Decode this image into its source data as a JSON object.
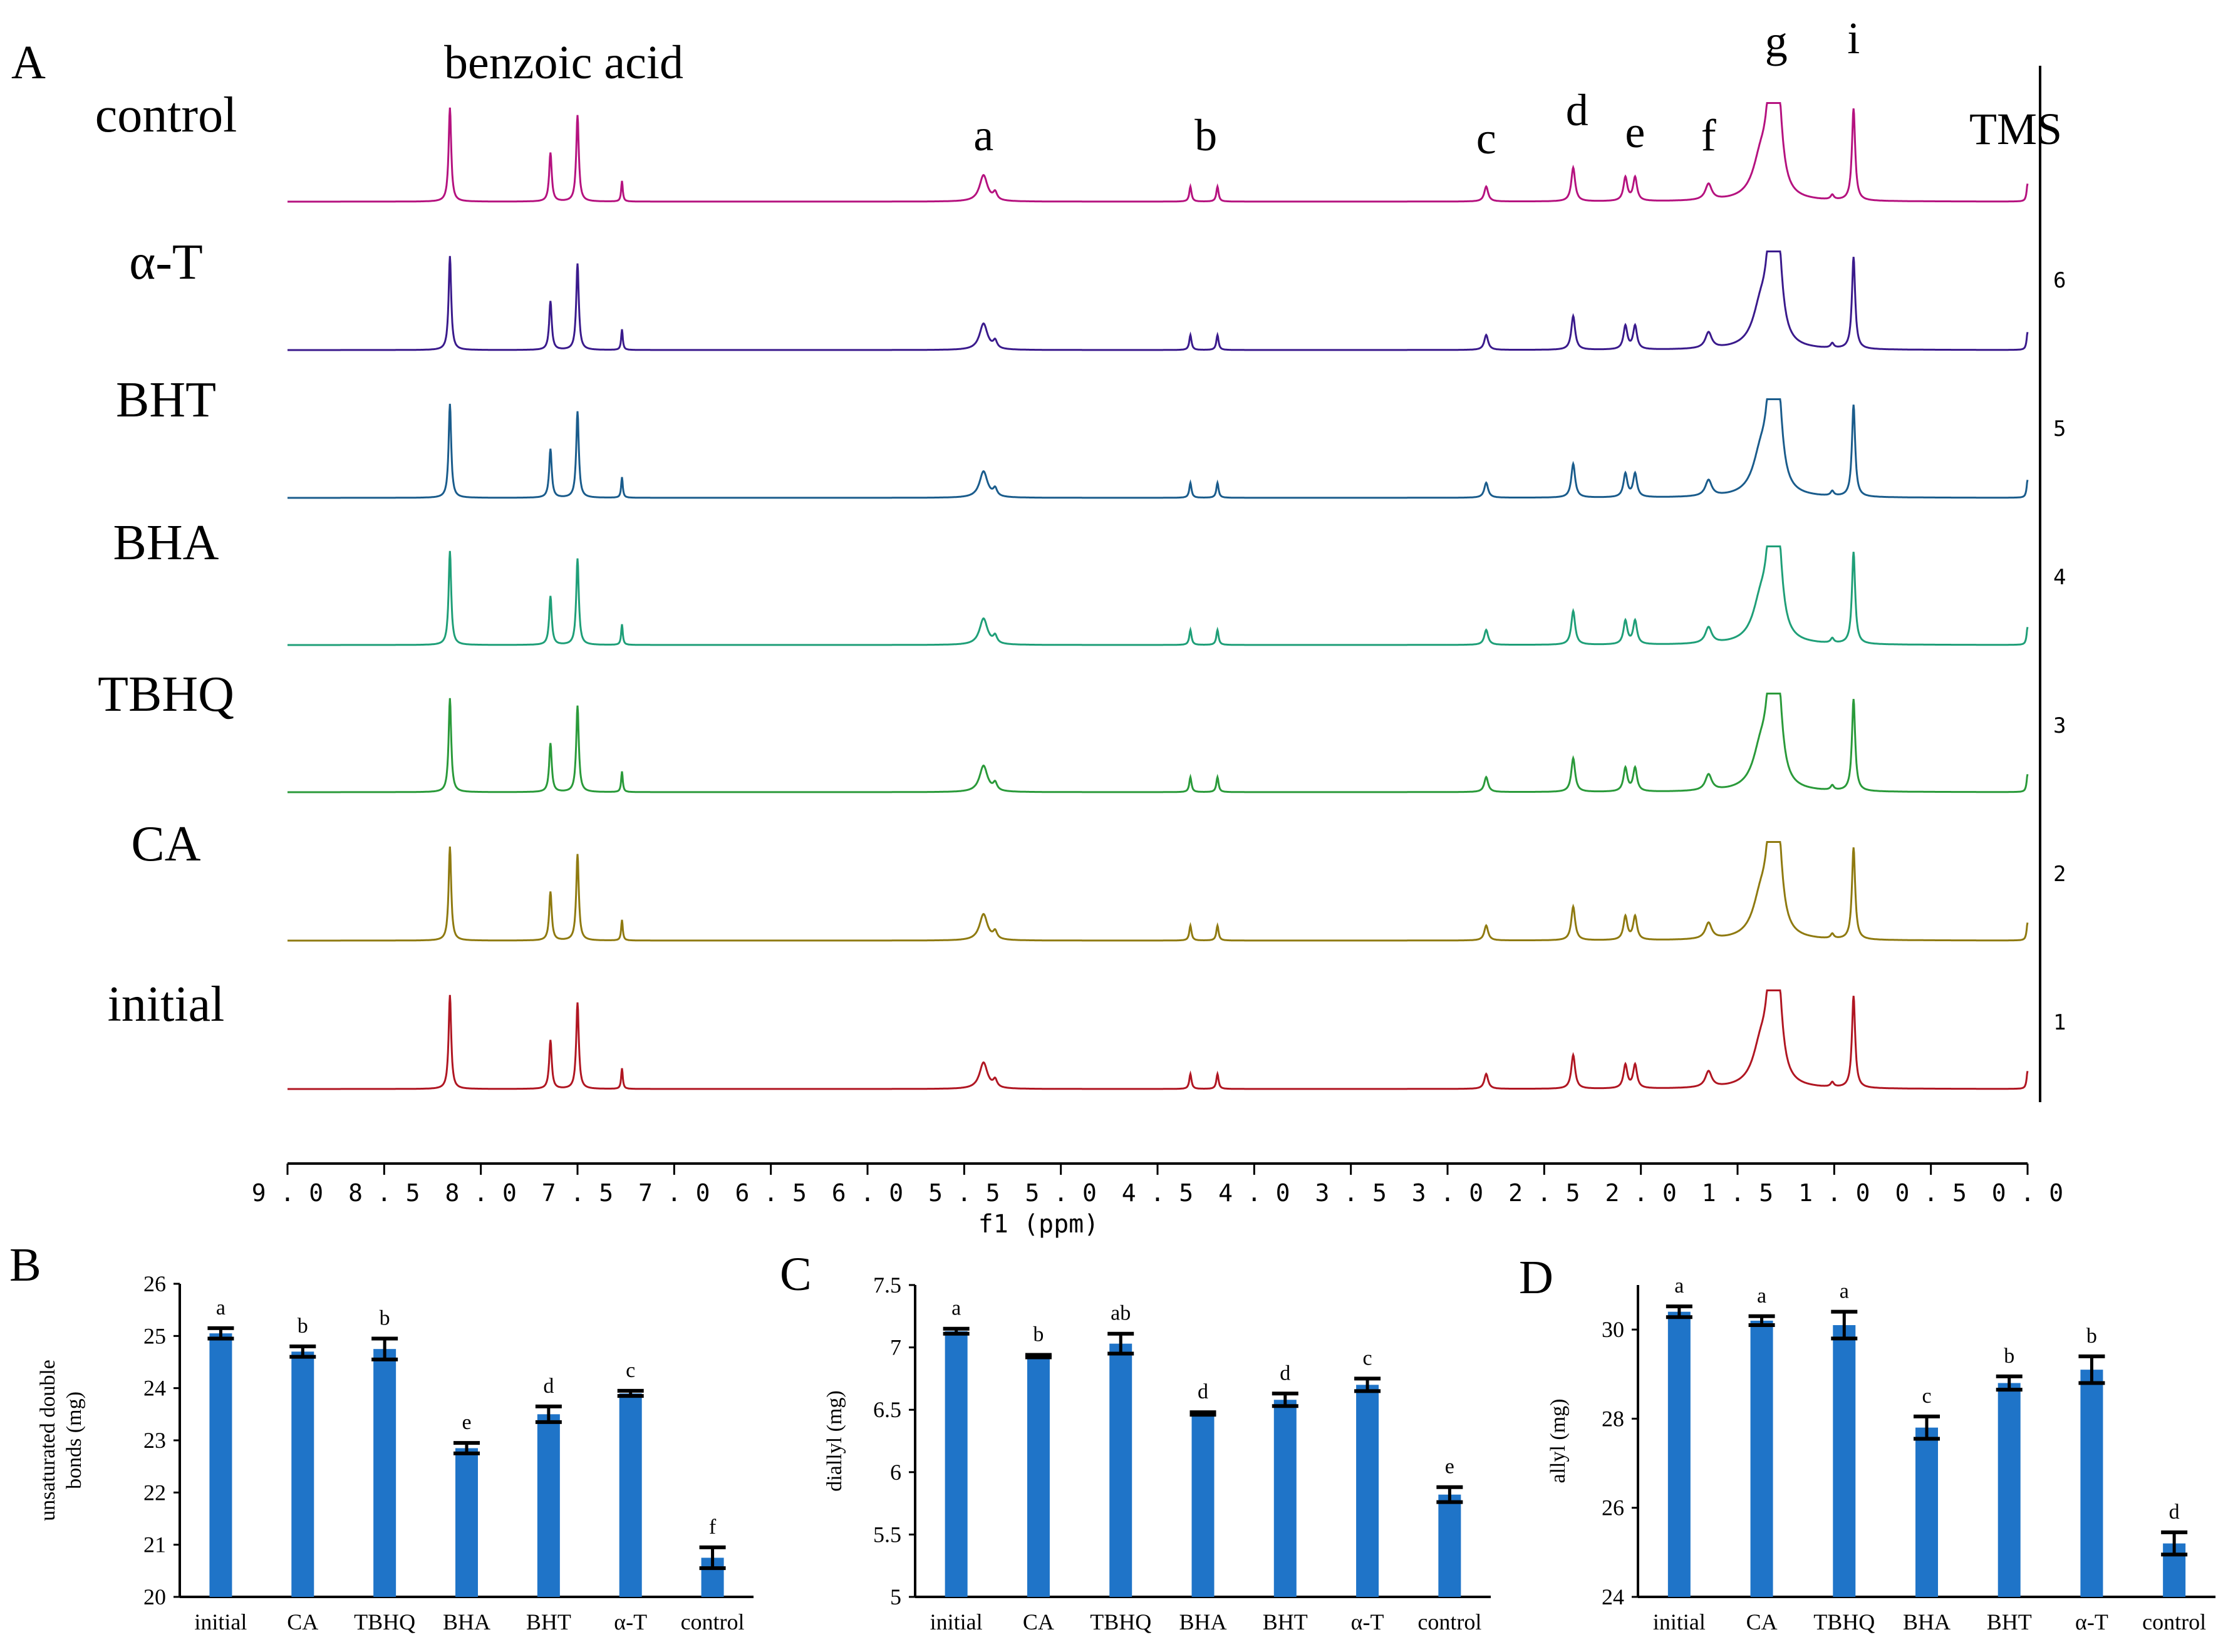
{
  "chart_data": [
    {
      "panel": "A",
      "type": "line",
      "title": "benzoic acid",
      "xlabel": "f1  (ppm)",
      "xlim": [
        9.0,
        0.0
      ],
      "xticks": [
        "9.0",
        "8.5",
        "8.0",
        "7.5",
        "7.0",
        "6.5",
        "6.0",
        "5.5",
        "5.0",
        "4.5",
        "4.0",
        "3.5",
        "3.0",
        "2.5",
        "2.0",
        "1.5",
        "1.0",
        "0.5",
        "0.0"
      ],
      "right_axis_ticks": [
        "6",
        "5",
        "4",
        "3",
        "2",
        "1"
      ],
      "peak_labels": [
        {
          "text": "a",
          "ppm": 5.4
        },
        {
          "text": "b",
          "ppm": 4.25
        },
        {
          "text": "c",
          "ppm": 2.8
        },
        {
          "text": "d",
          "ppm": 2.33
        },
        {
          "text": "e",
          "ppm": 2.03
        },
        {
          "text": "f",
          "ppm": 1.65
        },
        {
          "text": "g",
          "ppm": 1.3
        },
        {
          "text": "i",
          "ppm": 0.9
        },
        {
          "text": "TMS",
          "ppm": 0.0
        }
      ],
      "peaks": [
        {
          "ppm": 8.16,
          "h": 1.0,
          "w": 0.008
        },
        {
          "ppm": 7.64,
          "h": 0.52,
          "w": 0.008
        },
        {
          "ppm": 7.5,
          "h": 0.92,
          "w": 0.008
        },
        {
          "ppm": 7.27,
          "h": 0.22,
          "w": 0.005
        },
        {
          "ppm": 5.4,
          "h": 0.28,
          "w": 0.025
        },
        {
          "ppm": 5.34,
          "h": 0.08,
          "w": 0.012
        },
        {
          "ppm": 4.33,
          "h": 0.16,
          "w": 0.007
        },
        {
          "ppm": 4.19,
          "h": 0.16,
          "w": 0.007
        },
        {
          "ppm": 2.8,
          "h": 0.16,
          "w": 0.012
        },
        {
          "ppm": 2.35,
          "h": 0.36,
          "w": 0.012
        },
        {
          "ppm": 2.08,
          "h": 0.25,
          "w": 0.012
        },
        {
          "ppm": 2.03,
          "h": 0.25,
          "w": 0.012
        },
        {
          "ppm": 1.65,
          "h": 0.17,
          "w": 0.02
        },
        {
          "ppm": 1.33,
          "h": 0.95,
          "w": 0.025
        },
        {
          "ppm": 1.29,
          "h": 0.95,
          "w": 0.025
        },
        {
          "ppm": 1.38,
          "h": 0.4,
          "w": 0.05
        },
        {
          "ppm": 1.01,
          "h": 0.05,
          "w": 0.01
        },
        {
          "ppm": 0.9,
          "h": 0.98,
          "w": 0.01
        },
        {
          "ppm": 0.0,
          "h": 0.19,
          "w": 0.006
        }
      ],
      "series": [
        {
          "name": "control",
          "color": "#b5127f"
        },
        {
          "name": "α-T",
          "color": "#3a1a8c"
        },
        {
          "name": "BHT",
          "color": "#1a5c8c"
        },
        {
          "name": "BHA",
          "color": "#1f9f78"
        },
        {
          "name": "TBHQ",
          "color": "#2a9a3a"
        },
        {
          "name": "CA",
          "color": "#8f7a10"
        },
        {
          "name": "initial",
          "color": "#b01622"
        }
      ]
    },
    {
      "panel": "B",
      "type": "bar",
      "categories": [
        "initial",
        "CA",
        "TBHQ",
        "BHA",
        "BHT",
        "α-T",
        "control"
      ],
      "values": [
        25.05,
        24.7,
        24.75,
        22.85,
        23.5,
        23.9,
        20.75
      ],
      "errors": [
        0.1,
        0.1,
        0.2,
        0.1,
        0.15,
        0.05,
        0.2
      ],
      "letters": [
        "a",
        "b",
        "b",
        "e",
        "d",
        "c",
        "f"
      ],
      "ylabel": "unsaturated double bonds (mg)",
      "ylabel_lines": [
        "unsaturated double",
        "bonds (mg)"
      ],
      "ylim": [
        20,
        26
      ],
      "yticks": [
        "20",
        "21",
        "22",
        "23",
        "24",
        "25",
        "26"
      ],
      "bar_color": "#1f74c8"
    },
    {
      "panel": "C",
      "type": "bar",
      "categories": [
        "initial",
        "CA",
        "TBHQ",
        "BHA",
        "BHT",
        "α-T",
        "control"
      ],
      "values": [
        7.13,
        6.93,
        7.03,
        6.47,
        6.58,
        6.7,
        5.82
      ],
      "errors": [
        0.02,
        0.01,
        0.08,
        0.01,
        0.05,
        0.05,
        0.06
      ],
      "letters": [
        "a",
        "b",
        "ab",
        "d",
        "d",
        "c",
        "e"
      ],
      "ylabel": "diallyl (mg)",
      "ylim": [
        5,
        7.5
      ],
      "yticks": [
        "5",
        "5.5",
        "6",
        "6.5",
        "7",
        "7.5"
      ],
      "bar_color": "#1f74c8"
    },
    {
      "panel": "D",
      "type": "bar",
      "categories": [
        "initial",
        "CA",
        "TBHQ",
        "BHA",
        "BHT",
        "α-T",
        "control"
      ],
      "values": [
        30.4,
        30.2,
        30.1,
        27.8,
        28.8,
        29.1,
        25.2
      ],
      "errors": [
        0.12,
        0.1,
        0.3,
        0.25,
        0.15,
        0.3,
        0.25
      ],
      "letters": [
        "a",
        "a",
        "a",
        "c",
        "b",
        "b",
        "d"
      ],
      "ylabel": "allyl (mg)",
      "ylim": [
        24,
        31
      ],
      "yticks": [
        "24",
        "26",
        "28",
        "30"
      ],
      "bar_color": "#1f74c8"
    }
  ]
}
